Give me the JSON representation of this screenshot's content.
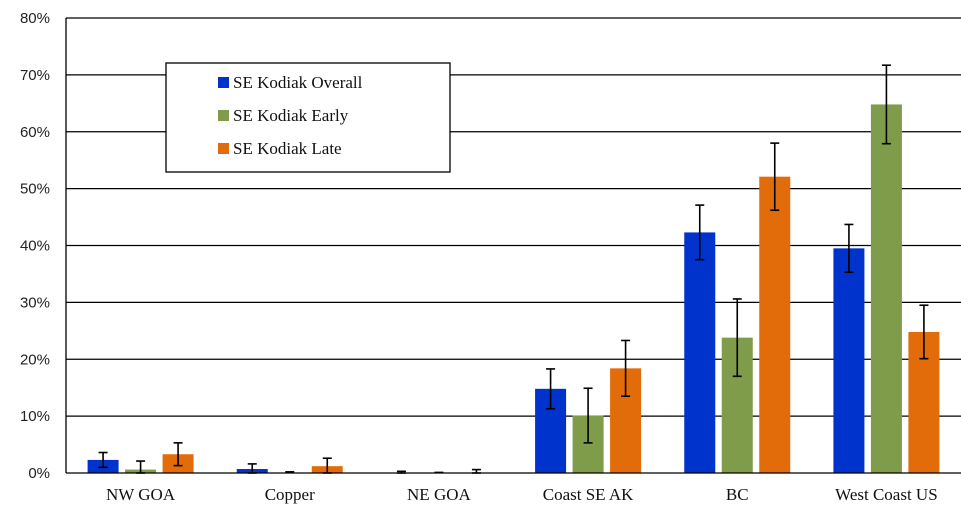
{
  "chart_data": {
    "type": "bar",
    "categories": [
      "NW GOA",
      "Copper",
      "NE GOA",
      "Coast SE AK",
      "BC",
      "West Coast US"
    ],
    "series": [
      {
        "name": "SE Kodiak Overall",
        "color": "#0033cc",
        "values": [
          2.3,
          0.7,
          0.0,
          14.8,
          42.3,
          39.5
        ],
        "err": [
          1.3,
          0.9,
          0.3,
          3.5,
          4.8,
          4.2
        ]
      },
      {
        "name": "SE Kodiak Early",
        "color": "#7f9c4a",
        "values": [
          0.6,
          0.0,
          0.0,
          10.1,
          23.8,
          64.8
        ],
        "err": [
          1.5,
          0.2,
          0.1,
          4.8,
          6.8,
          6.9
        ]
      },
      {
        "name": "SE Kodiak Late",
        "color": "#e36c0a",
        "values": [
          3.3,
          1.2,
          0.0,
          18.4,
          52.1,
          24.8
        ],
        "err": [
          2.0,
          1.4,
          0.6,
          4.9,
          5.9,
          4.7
        ]
      }
    ],
    "ylim": [
      0,
      80
    ],
    "yticks": [
      0,
      10,
      20,
      30,
      40,
      50,
      60,
      70,
      80
    ],
    "ytick_labels": [
      "0%",
      "10%",
      "20%",
      "30%",
      "40%",
      "50%",
      "60%",
      "70%",
      "80%"
    ],
    "grid": true,
    "legend_position": "top-left",
    "title": "",
    "xlabel": "",
    "ylabel": ""
  }
}
